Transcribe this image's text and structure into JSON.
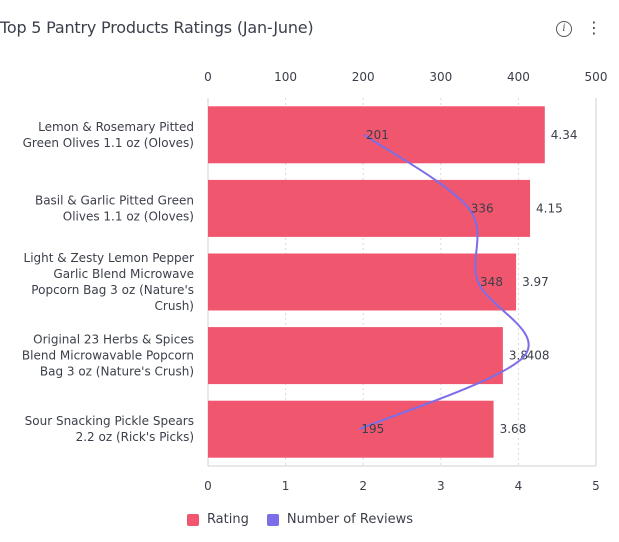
{
  "header": {
    "title": "Top 5 Pantry Products Ratings (Jan-June)",
    "info_icon": "info-icon",
    "menu_icon": "more-vertical-icon",
    "info_glyph": "i",
    "menu_glyph": "⋮"
  },
  "legend": {
    "items": [
      {
        "label": "Rating",
        "color": "#f0566e"
      },
      {
        "label": "Number of Reviews",
        "color": "#7b6ee8"
      }
    ]
  },
  "chart_data": {
    "type": "bar",
    "orientation": "horizontal",
    "title": "Top 5 Pantry Products Ratings (Jan-June)",
    "categories": [
      [
        "Lemon & Rosemary Pitted",
        "Green Olives 1.1 oz (Oloves)"
      ],
      [
        "Basil & Garlic Pitted Green",
        "Olives 1.1 oz (Oloves)"
      ],
      [
        "Light & Zesty Lemon Pepper",
        "Garlic Blend Microwave",
        "Popcorn Bag 3 oz (Nature's",
        "Crush)"
      ],
      [
        "Original 23 Herbs & Spices",
        "Blend Microwavable Popcorn",
        "Bag 3 oz (Nature's Crush)"
      ],
      [
        "Sour Snacking Pickle Spears",
        "2.2 oz (Rick's Picks)"
      ]
    ],
    "series": [
      {
        "name": "Rating",
        "type": "bar",
        "axis": "bottom",
        "color": "#f0566e",
        "values": [
          4.34,
          4.15,
          3.97,
          3.8,
          3.68
        ]
      },
      {
        "name": "Number of Reviews",
        "type": "line",
        "axis": "top",
        "color": "#7b6ee8",
        "values": [
          201,
          336,
          348,
          408,
          195
        ]
      }
    ],
    "bottom_axis": {
      "range": [
        0,
        5
      ],
      "ticks": [
        0,
        1,
        2,
        3,
        4,
        5
      ]
    },
    "top_axis": {
      "range": [
        0,
        500
      ],
      "ticks": [
        0,
        100,
        200,
        300,
        400,
        500
      ]
    },
    "grid": true,
    "legend_position": "bottom"
  }
}
